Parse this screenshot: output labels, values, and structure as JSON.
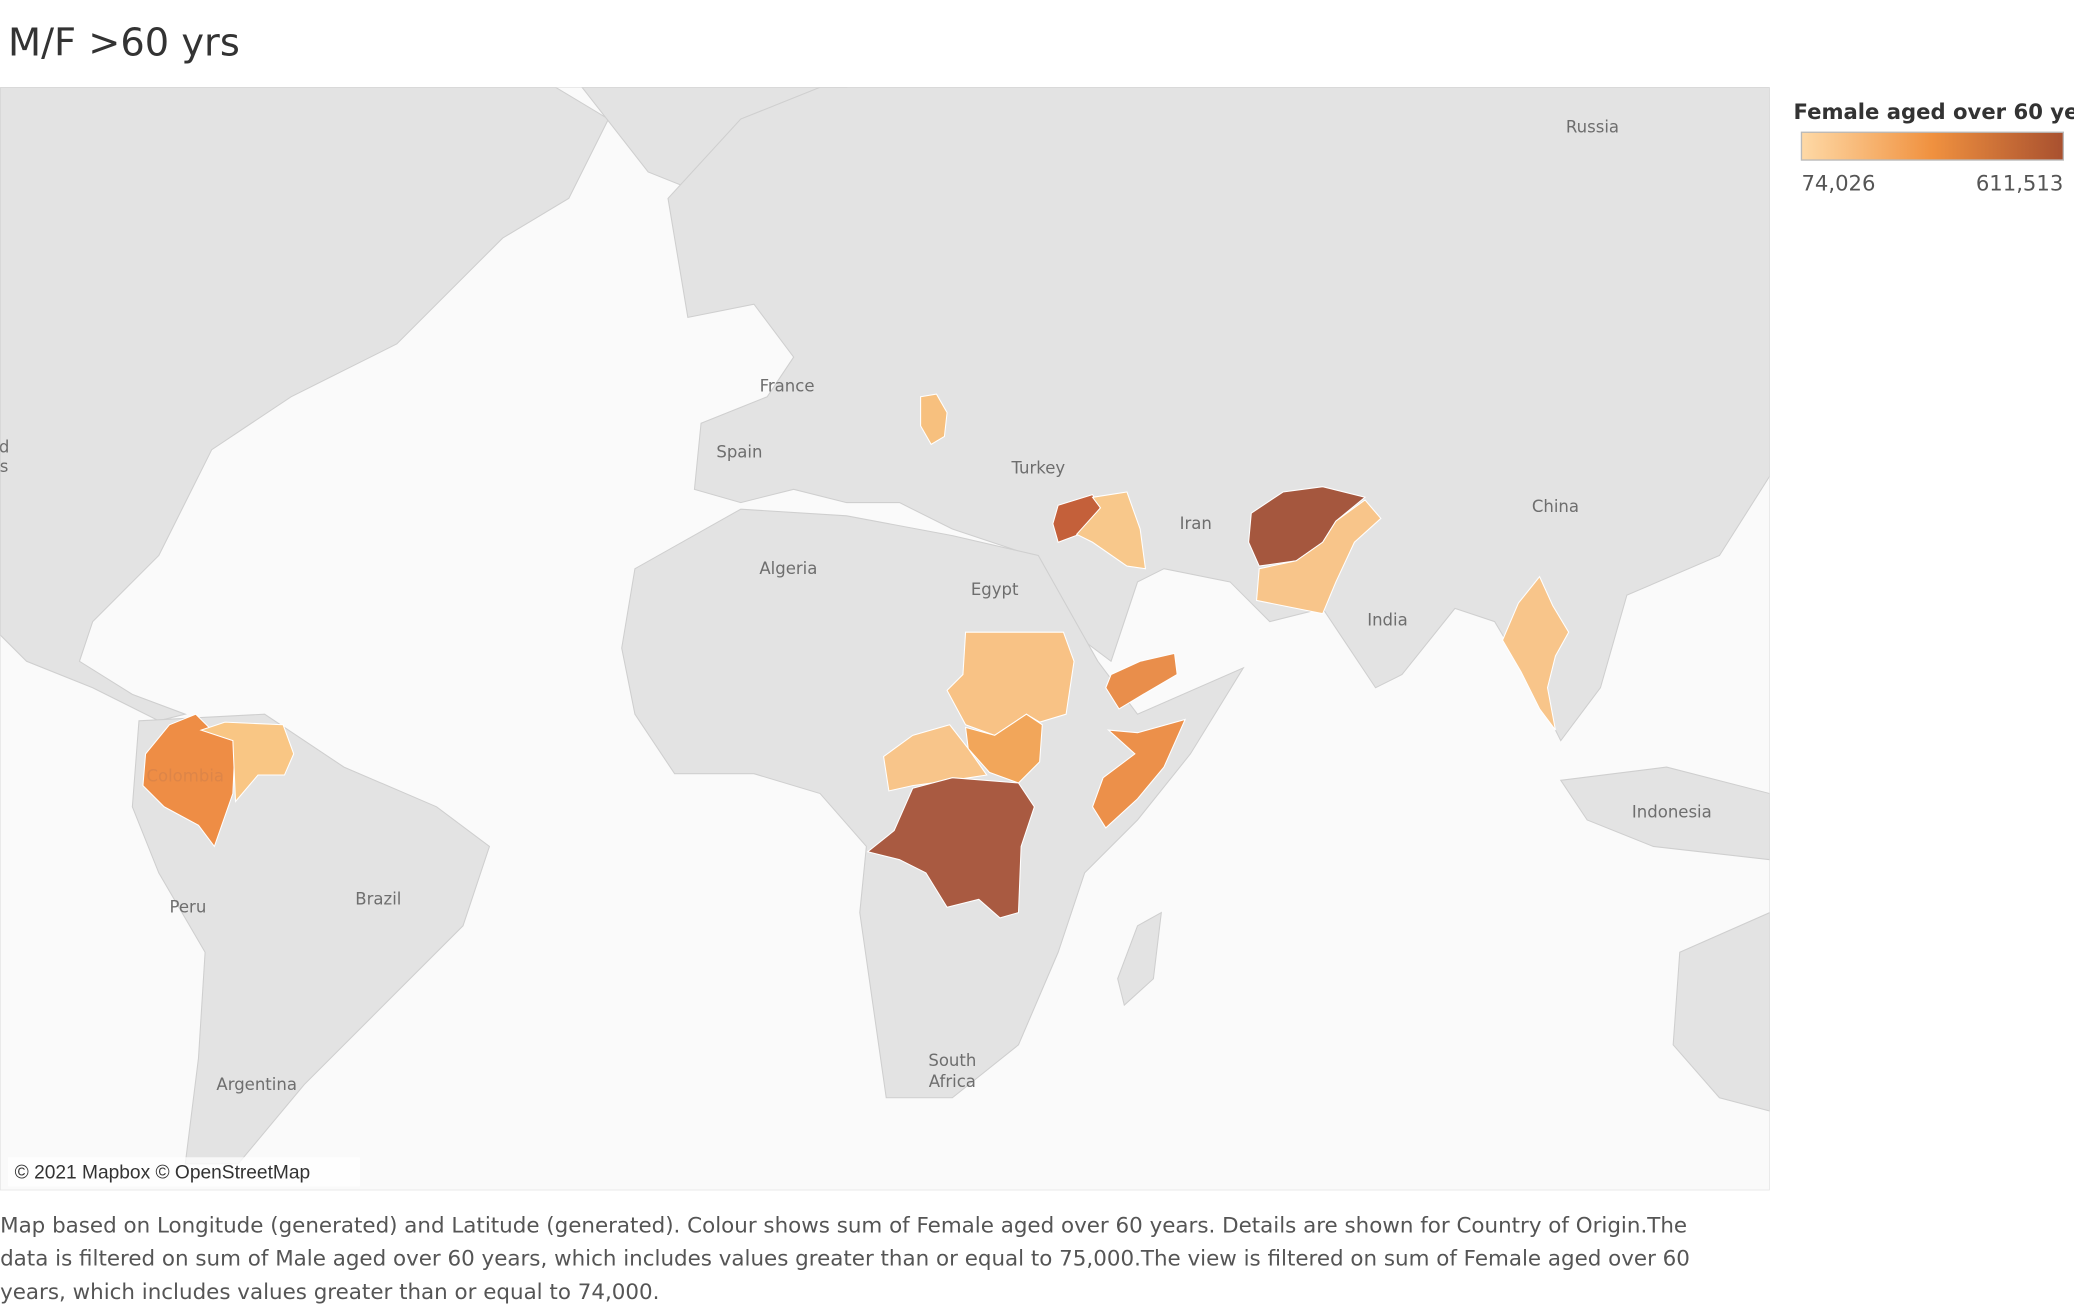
{
  "header": {
    "title": "M/F >60 yrs"
  },
  "map": {
    "labels": [
      "Russia",
      "France",
      "Spain",
      "Turkey",
      "China",
      "Iran",
      "Algeria",
      "Egypt",
      "India",
      "Colombia",
      "Brazil",
      "Peru",
      "Indonesia",
      "Argentina",
      "South",
      "Africa",
      "d",
      "s"
    ],
    "attribution": "© 2021 Mapbox © OpenStreetMap"
  },
  "legend": {
    "title": "Female aged over 60 ye..",
    "min_label": "74,026",
    "max_label": "611,513"
  },
  "caption": {
    "lines": [
      "Map based on Longitude (generated) and Latitude (generated). Colour shows sum of Female aged over 60 years. Details are shown for Country of Origin.The",
      "data is filtered on sum of Male aged over 60 years, which includes values greater than or equal to 75,000.The view is filtered on sum of Female aged over 60",
      "years, which includes values greater than or equal to 74,000."
    ]
  }
}
